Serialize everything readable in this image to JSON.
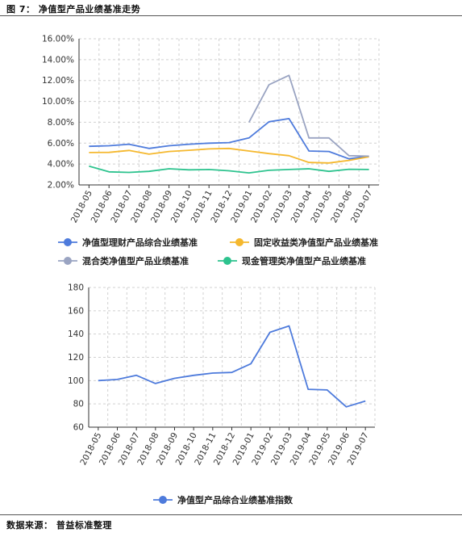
{
  "header": {
    "figure_title": "图 7： 净值型产品业绩基准走势"
  },
  "footer": {
    "source": "数据来源： 普益标准整理"
  },
  "colors": {
    "series1": "#4e7bdc",
    "series2": "#f5b82e",
    "series3": "#9aa4c2",
    "series4": "#2dc38e",
    "grid": "#d0d0d0",
    "axis": "#333333"
  },
  "chart_data": [
    {
      "type": "line",
      "categories": [
        "2018-05",
        "2018-06",
        "2018-07",
        "2018-08",
        "2018-09",
        "2018-10",
        "2018-11",
        "2018-12",
        "2019-01",
        "2019-02",
        "2019-03",
        "2019-04",
        "2019-05",
        "2019-06",
        "2019-07"
      ],
      "y_ticks": [
        "16.00%",
        "14.00%",
        "12.00%",
        "10.00%",
        "8.00%",
        "6.00%",
        "4.00%",
        "2.00%"
      ],
      "ylim": [
        2,
        16
      ],
      "grid": "dashed",
      "legend_position": "bottom",
      "series": [
        {
          "name": "净值型理财产品综合业绩基准",
          "values": [
            5.7,
            5.75,
            5.9,
            5.5,
            5.75,
            5.9,
            6.0,
            6.05,
            6.5,
            8.05,
            8.35,
            5.25,
            5.2,
            4.5,
            4.75
          ]
        },
        {
          "name": "固定收益类净值型产品业绩基准",
          "values": [
            5.1,
            5.12,
            5.3,
            4.95,
            5.2,
            5.32,
            5.45,
            5.5,
            5.25,
            5.0,
            4.8,
            4.15,
            4.1,
            4.35,
            4.7
          ]
        },
        {
          "name": "混合类净值型产品业绩基准",
          "values": [
            null,
            null,
            null,
            null,
            null,
            null,
            null,
            null,
            8.0,
            11.6,
            12.5,
            6.5,
            6.5,
            4.8,
            4.75
          ]
        },
        {
          "name": "现金管理类净值型产品业绩基准",
          "values": [
            3.8,
            3.25,
            3.2,
            3.3,
            3.55,
            3.45,
            3.48,
            3.35,
            3.15,
            3.4,
            3.48,
            3.55,
            3.3,
            3.5,
            3.48
          ]
        }
      ]
    },
    {
      "type": "line",
      "categories": [
        "2018-05",
        "2018-06",
        "2018-07",
        "2018-08",
        "2018-09",
        "2018-10",
        "2018-11",
        "2018-12",
        "2019-01",
        "2019-02",
        "2019-03",
        "2019-04",
        "2019-05",
        "2019-06",
        "2019-07"
      ],
      "y_ticks": [
        "180",
        "160",
        "140",
        "120",
        "100",
        "80",
        "60"
      ],
      "ylim": [
        60,
        180
      ],
      "grid": "dashed",
      "legend_position": "bottom",
      "series": [
        {
          "name": "净值型产品综合业绩基准指数",
          "values": [
            100,
            101,
            104.5,
            97.5,
            102,
            104.5,
            106.5,
            107,
            114.5,
            141.5,
            147,
            92.5,
            92,
            77.5,
            82.5
          ]
        }
      ]
    }
  ]
}
